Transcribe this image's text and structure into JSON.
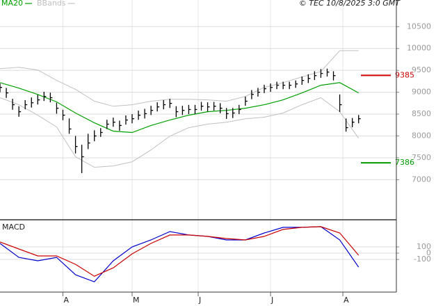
{
  "chart_data": [
    {
      "type": "ohlc",
      "source": "© TEC 10/8/2025 3:0 GMT",
      "x": [
        0,
        2,
        4,
        6,
        8,
        10,
        12,
        14,
        16,
        18,
        20,
        22,
        24,
        26,
        28,
        30,
        32,
        34,
        36,
        38,
        40,
        42,
        44,
        46,
        48,
        50,
        52,
        54,
        56,
        58,
        60,
        62,
        64,
        66,
        68,
        70,
        72,
        74,
        76,
        78,
        80,
        82,
        84,
        86,
        88,
        90,
        92,
        94,
        96,
        98,
        100,
        102,
        104,
        106,
        108,
        110,
        112,
        114
      ],
      "high": [
        9200,
        9100,
        8850,
        8680,
        8820,
        8880,
        8940,
        9010,
        8990,
        8760,
        8600,
        8400,
        8000,
        7800,
        8050,
        8130,
        8180,
        8370,
        8420,
        8350,
        8470,
        8500,
        8580,
        8620,
        8690,
        8770,
        8820,
        8850,
        8680,
        8690,
        8710,
        8710,
        8780,
        8770,
        8780,
        8750,
        8640,
        8640,
        8710,
        8900,
        9050,
        9100,
        9170,
        9200,
        9240,
        9240,
        9240,
        9270,
        9360,
        9410,
        9480,
        9530,
        9540,
        9480,
        8950,
        8400,
        8410,
        8480
      ],
      "low": [
        9000,
        8870,
        8600,
        8440,
        8610,
        8650,
        8720,
        8800,
        8770,
        8510,
        8360,
        8050,
        7600,
        7150,
        7700,
        7880,
        7980,
        8160,
        8210,
        8120,
        8260,
        8290,
        8370,
        8400,
        8480,
        8560,
        8610,
        8640,
        8430,
        8480,
        8500,
        8500,
        8580,
        8560,
        8580,
        8520,
        8390,
        8410,
        8500,
        8690,
        8840,
        8900,
        8980,
        9010,
        9070,
        9070,
        9070,
        9100,
        9170,
        9210,
        9280,
        9330,
        9360,
        9270,
        8550,
        8100,
        8200,
        8290
      ],
      "close": [
        9110,
        8985,
        8715,
        8555,
        8715,
        8760,
        8825,
        8905,
        8875,
        8635,
        8475,
        8160,
        7760,
        7525,
        7840,
        8000,
        8080,
        8270,
        8315,
        8240,
        8365,
        8395,
        8475,
        8510,
        8585,
        8665,
        8715,
        8745,
        8555,
        8585,
        8605,
        8605,
        8680,
        8665,
        8680,
        8635,
        8510,
        8525,
        8605,
        8795,
        8950,
        9000,
        9080,
        9110,
        9160,
        9160,
        9160,
        9190,
        9270,
        9315,
        9380,
        9430,
        9460,
        9380,
        8715,
        8190,
        8315,
        8395
      ],
      "bar_color": "#000000",
      "series": [
        {
          "name": "MA20",
          "color": "#00a000",
          "x": [
            0,
            6,
            12,
            18,
            24,
            30,
            36,
            42,
            48,
            54,
            60,
            66,
            72,
            78,
            84,
            90,
            96,
            102,
            108,
            114
          ],
          "values": [
            9220,
            9095,
            8950,
            8780,
            8525,
            8300,
            8110,
            8080,
            8240,
            8365,
            8475,
            8555,
            8585,
            8635,
            8715,
            8825,
            8985,
            9160,
            9220,
            8985
          ]
        },
        {
          "name": "BBands",
          "color": "#c0c0c0",
          "x": [
            0,
            6,
            12,
            18,
            24,
            30,
            36,
            42,
            48,
            54,
            60,
            66,
            72,
            78,
            84,
            90,
            96,
            102,
            108,
            114
          ],
          "upper": [
            9540,
            9570,
            9510,
            9270,
            9065,
            8795,
            8680,
            8715,
            8795,
            8840,
            8840,
            8825,
            8795,
            8905,
            9110,
            9220,
            9350,
            9475,
            9950,
            9950
          ],
          "lower": [
            8875,
            8715,
            8475,
            8205,
            7525,
            7285,
            7315,
            7410,
            7680,
            7995,
            8190,
            8270,
            8315,
            8395,
            8430,
            8525,
            8715,
            8875,
            8555,
            7950
          ]
        }
      ],
      "annotations": [
        {
          "value": 9385,
          "color": "#cc0000"
        },
        {
          "value": 7386,
          "color": "#009900"
        }
      ],
      "xlim": [
        0,
        126
      ],
      "ylim": [
        6100,
        10950
      ],
      "yticks": [
        7000,
        7500,
        8000,
        8500,
        9000,
        9500,
        10000,
        10500
      ],
      "grid": true
    },
    {
      "type": "line",
      "title": "MACD",
      "x": [
        0,
        6,
        12,
        18,
        24,
        30,
        36,
        42,
        48,
        54,
        60,
        66,
        72,
        78,
        84,
        90,
        96,
        102,
        108,
        114
      ],
      "series": [
        {
          "color": "#0000cc",
          "values": [
            156,
            -67,
            -122,
            -67,
            -344,
            -456,
            -122,
            100,
            211,
            344,
            289,
            267,
            211,
            211,
            322,
            411,
            411,
            422,
            211,
            -222
          ]
        },
        {
          "color": "#cc0000",
          "values": [
            178,
            67,
            -44,
            -44,
            -178,
            -367,
            -233,
            -11,
            156,
            289,
            289,
            267,
            233,
            211,
            267,
            378,
            411,
            422,
            322,
            -33
          ]
        }
      ],
      "xlim": [
        0,
        126
      ],
      "ylim": [
        -620,
        510
      ],
      "yticks": [
        100,
        0,
        -100
      ],
      "xticks": [
        {
          "value": 20,
          "label": "A"
        },
        {
          "value": 42,
          "label": "M"
        },
        {
          "value": 63,
          "label": "J"
        },
        {
          "value": 86,
          "label": "J"
        },
        {
          "value": 109,
          "label": "A"
        }
      ],
      "grid": true
    }
  ]
}
